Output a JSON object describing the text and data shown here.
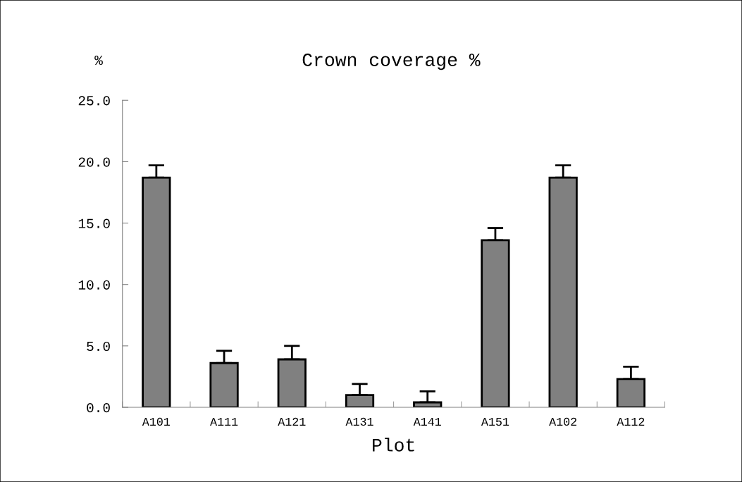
{
  "chart_data": {
    "type": "bar",
    "title": "Crown coverage %",
    "xlabel": "Plot",
    "ylabel": "%",
    "categories": [
      "A101",
      "A111",
      "A121",
      "A131",
      "A141",
      "A151",
      "A102",
      "A112"
    ],
    "values": [
      18.7,
      3.6,
      3.9,
      1.0,
      0.4,
      13.6,
      18.7,
      2.3
    ],
    "errors": [
      [
        18.7,
        19.7
      ],
      [
        3.6,
        4.6
      ],
      [
        3.9,
        5.0
      ],
      [
        1.0,
        1.9
      ],
      [
        0.4,
        1.3
      ],
      [
        13.6,
        14.6
      ],
      [
        18.7,
        19.7
      ],
      [
        2.3,
        3.3
      ]
    ],
    "color": "#808080",
    "ylim": [
      0,
      25
    ],
    "yticks": [
      {
        "value": 0,
        "label": "0.0"
      },
      {
        "value": 5,
        "label": "5.0"
      },
      {
        "value": 10,
        "label": "10.0"
      },
      {
        "value": 15,
        "label": "15.0"
      },
      {
        "value": 20,
        "label": "20.0"
      },
      {
        "value": 25,
        "label": "25.0"
      }
    ],
    "grid": false,
    "legend": false
  }
}
